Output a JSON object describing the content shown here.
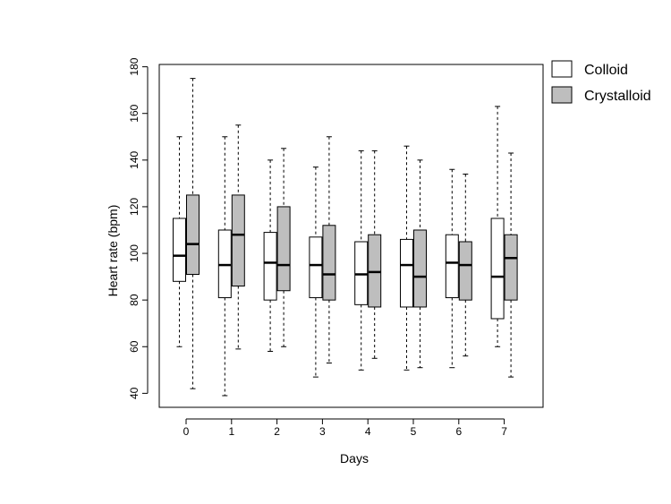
{
  "chart_data": {
    "type": "boxplot",
    "title": "",
    "xlabel": "Days",
    "ylabel": "Heart rate (bpm)",
    "ylim": [
      34,
      181
    ],
    "yticks": [
      40,
      60,
      80,
      100,
      120,
      140,
      160,
      180
    ],
    "categories": [
      "0",
      "1",
      "2",
      "3",
      "4",
      "5",
      "6",
      "7"
    ],
    "legend_position": "top-right-outside",
    "grid": false,
    "series": [
      {
        "name": "Colloid",
        "color": "#ffffff",
        "boxes": [
          {
            "min": 60,
            "q1": 88,
            "median": 99,
            "q3": 115,
            "max": 150
          },
          {
            "min": 39,
            "q1": 81,
            "median": 95,
            "q3": 110,
            "max": 150
          },
          {
            "min": 58,
            "q1": 80,
            "median": 96,
            "q3": 109,
            "max": 140
          },
          {
            "min": 47,
            "q1": 81,
            "median": 95,
            "q3": 107,
            "max": 137
          },
          {
            "min": 50,
            "q1": 78,
            "median": 91,
            "q3": 105,
            "max": 144
          },
          {
            "min": 50,
            "q1": 77,
            "median": 95,
            "q3": 106,
            "max": 146
          },
          {
            "min": 51,
            "q1": 81,
            "median": 96,
            "q3": 108,
            "max": 136
          },
          {
            "min": 60,
            "q1": 72,
            "median": 90,
            "q3": 115,
            "max": 163
          }
        ]
      },
      {
        "name": "Crystalloid",
        "color": "#bebebe",
        "boxes": [
          {
            "min": 42,
            "q1": 91,
            "median": 104,
            "q3": 125,
            "max": 175
          },
          {
            "min": 59,
            "q1": 86,
            "median": 108,
            "q3": 125,
            "max": 155
          },
          {
            "min": 60,
            "q1": 84,
            "median": 95,
            "q3": 120,
            "max": 145
          },
          {
            "min": 53,
            "q1": 80,
            "median": 91,
            "q3": 112,
            "max": 150
          },
          {
            "min": 55,
            "q1": 77,
            "median": 92,
            "q3": 108,
            "max": 144
          },
          {
            "min": 51,
            "q1": 77,
            "median": 90,
            "q3": 110,
            "max": 140
          },
          {
            "min": 56,
            "q1": 80,
            "median": 95,
            "q3": 105,
            "max": 134
          },
          {
            "min": 47,
            "q1": 80,
            "median": 98,
            "q3": 108,
            "max": 143
          }
        ]
      }
    ]
  }
}
